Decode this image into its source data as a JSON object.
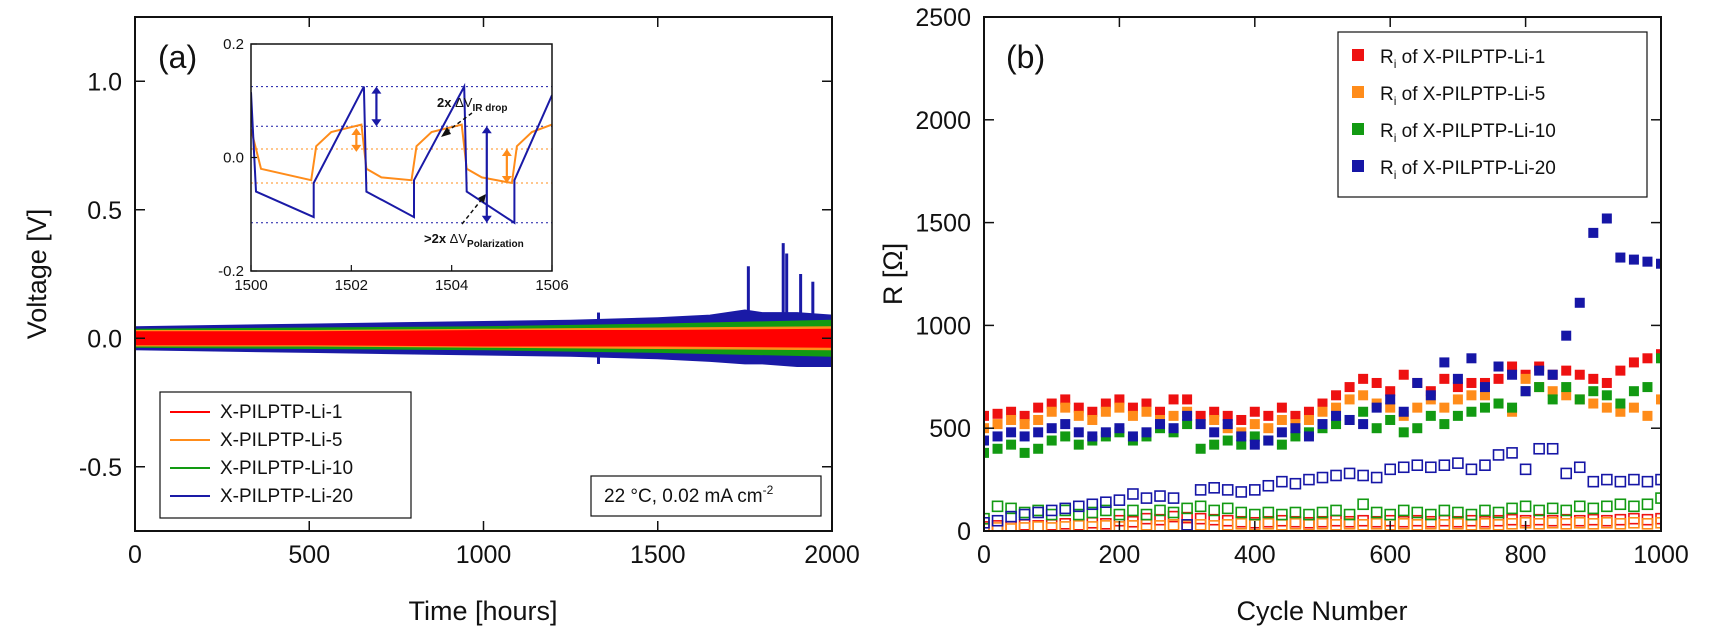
{
  "chart_data": [
    {
      "id": "a",
      "type": "line",
      "panel_label": "(a)",
      "xlabel": "Time [hours]",
      "ylabel": "Voltage [V]",
      "xlim": [
        0,
        2000
      ],
      "ylim": [
        -0.75,
        1.25
      ],
      "xticks": [
        "0",
        "500",
        "1000",
        "1500",
        "2000"
      ],
      "xtick_values": [
        0,
        500,
        1000,
        1500,
        2000
      ],
      "yticks": [
        "-0.5",
        "0.0",
        "0.5",
        "1.0"
      ],
      "ytick_values": [
        -0.5,
        0.0,
        0.5,
        1.0
      ],
      "annotation": "22 °C, 0.02 mA cm",
      "annotation_sup": "-2",
      "legend_position": "bottom-left",
      "series": [
        {
          "name": "X-PILPTP-Li-1",
          "color": "#ff0000",
          "x": [
            0,
            500,
            1000,
            1500,
            2000
          ],
          "upper": [
            0.025,
            0.025,
            0.03,
            0.03,
            0.035
          ],
          "lower": [
            -0.025,
            -0.025,
            -0.03,
            -0.03,
            -0.035
          ]
        },
        {
          "name": "X-PILPTP-Li-5",
          "color": "#ff8c1a",
          "x": [
            0,
            500,
            1000,
            1500,
            2000
          ],
          "upper": [
            0.03,
            0.03,
            0.035,
            0.04,
            0.045
          ],
          "lower": [
            -0.03,
            -0.03,
            -0.035,
            -0.04,
            -0.045
          ]
        },
        {
          "name": "X-PILPTP-Li-10",
          "color": "#129a12",
          "x": [
            0,
            500,
            1000,
            1500,
            2000
          ],
          "upper": [
            0.035,
            0.04,
            0.045,
            0.055,
            0.07
          ],
          "lower": [
            -0.035,
            -0.04,
            -0.045,
            -0.055,
            -0.07
          ]
        },
        {
          "name": "X-PILPTP-Li-20",
          "color": "#1a1aa6",
          "x": [
            0,
            250,
            500,
            750,
            1000,
            1250,
            1500,
            1650,
            1750,
            1800,
            1900,
            2000
          ],
          "upper": [
            0.045,
            0.05,
            0.055,
            0.06,
            0.065,
            0.07,
            0.08,
            0.09,
            0.11,
            0.1,
            0.1,
            0.09
          ],
          "lower": [
            -0.045,
            -0.05,
            -0.055,
            -0.06,
            -0.065,
            -0.07,
            -0.08,
            -0.09,
            -0.1,
            -0.1,
            -0.11,
            -0.11
          ],
          "spikes": [
            [
              1330,
              0.1
            ],
            [
              1330,
              -0.1
            ],
            [
              1760,
              0.28
            ],
            [
              1860,
              0.37
            ],
            [
              1870,
              0.33
            ],
            [
              1910,
              0.25
            ],
            [
              1945,
              0.22
            ]
          ]
        }
      ],
      "inset": {
        "xlim": [
          1500,
          1506
        ],
        "ylim": [
          -0.2,
          0.2
        ],
        "xticks": [
          "1500",
          "1502",
          "1504",
          "1506"
        ],
        "xtick_values": [
          1500,
          1502,
          1504,
          1506
        ],
        "yticks": [
          "-0.2",
          "0.0",
          "0.2"
        ],
        "ytick_values": [
          -0.2,
          0.0,
          0.2
        ],
        "ref_lines_blue": [
          0.125,
          0.055,
          -0.115
        ],
        "ref_lines_orange": [
          0.015,
          -0.045
        ],
        "label_ir_prefix": "2x ",
        "label_ir_delta": "ΔV",
        "label_ir_sub": "IR drop",
        "label_pol_prefix": ">2x  ",
        "label_pol_delta": "ΔV",
        "label_pol_sub": "Polarization",
        "blue_curve": {
          "x": [
            1500,
            1500.1,
            1501.25,
            1501.25,
            1502.25,
            1502.3,
            1503.25,
            1503.25,
            1504.25,
            1504.3,
            1505.25,
            1505.25,
            1506
          ],
          "y": [
            0.115,
            -0.06,
            -0.105,
            -0.045,
            0.125,
            -0.06,
            -0.105,
            -0.04,
            0.125,
            -0.06,
            -0.115,
            -0.04,
            0.11
          ]
        },
        "orange_curve": {
          "x": [
            1500,
            1500.2,
            1501.2,
            1501.3,
            1501.6,
            1502.2,
            1502.3,
            1502.6,
            1503.2,
            1503.3,
            1503.6,
            1504.2,
            1504.3,
            1504.6,
            1505.2,
            1505.3,
            1505.6,
            1506
          ],
          "y": [
            0.05,
            -0.02,
            -0.04,
            0.02,
            0.045,
            0.058,
            -0.02,
            -0.035,
            -0.04,
            0.02,
            0.045,
            0.058,
            -0.02,
            -0.035,
            -0.045,
            0.02,
            0.045,
            0.058
          ]
        }
      }
    },
    {
      "id": "b",
      "type": "scatter",
      "panel_label": "(b)",
      "xlabel": "Cycle Number",
      "ylabel": "R [Ω]",
      "xlim": [
        0,
        1000
      ],
      "ylim": [
        0,
        2500
      ],
      "xticks": [
        "0",
        "200",
        "400",
        "600",
        "800",
        "1000"
      ],
      "xtick_values": [
        0,
        200,
        400,
        600,
        800,
        1000
      ],
      "yticks": [
        "0",
        "500",
        "1000",
        "1500",
        "2000",
        "2500"
      ],
      "ytick_values": [
        0,
        500,
        1000,
        1500,
        2000,
        2500
      ],
      "legend_position": "top-right",
      "x": [
        0,
        20,
        40,
        60,
        80,
        100,
        120,
        140,
        160,
        180,
        200,
        220,
        240,
        260,
        280,
        300,
        320,
        340,
        360,
        380,
        400,
        420,
        440,
        460,
        480,
        500,
        520,
        540,
        560,
        580,
        600,
        620,
        640,
        660,
        680,
        700,
        720,
        740,
        760,
        780,
        800,
        820,
        840,
        860,
        880,
        900,
        920,
        940,
        960,
        980,
        1000
      ],
      "series": [
        {
          "name_prefix": "R",
          "name_sub": "i",
          "name_rest": " of X-PILPTP-Li-1",
          "color": "#ee1111",
          "values": [
            560,
            570,
            580,
            560,
            600,
            620,
            640,
            600,
            580,
            620,
            640,
            600,
            620,
            580,
            640,
            640,
            560,
            580,
            560,
            540,
            580,
            560,
            600,
            560,
            580,
            620,
            660,
            700,
            740,
            720,
            680,
            760,
            720,
            680,
            740,
            700,
            720,
            720,
            740,
            800,
            760,
            800,
            760,
            780,
            760,
            740,
            720,
            780,
            820,
            840,
            860
          ],
          "open": [
            20,
            25,
            20,
            30,
            25,
            30,
            35,
            30,
            40,
            35,
            50,
            45,
            60,
            55,
            70,
            65,
            60,
            55,
            50,
            45,
            40,
            45,
            50,
            45,
            40,
            45,
            50,
            45,
            50,
            45,
            50,
            45,
            50,
            45,
            50,
            45,
            50,
            45,
            50,
            55,
            50,
            55,
            50,
            55,
            50,
            55,
            50,
            55,
            60,
            55,
            60
          ]
        },
        {
          "name_prefix": "R",
          "name_sub": "i",
          "name_rest": " of X-PILPTP-Li-5",
          "color": "#ff8c1a",
          "values": [
            500,
            520,
            540,
            520,
            540,
            580,
            600,
            560,
            540,
            580,
            600,
            560,
            580,
            540,
            560,
            580,
            520,
            540,
            500,
            480,
            520,
            500,
            540,
            520,
            540,
            580,
            600,
            640,
            660,
            620,
            600,
            560,
            600,
            640,
            600,
            640,
            660,
            660,
            620,
            580,
            740,
            700,
            680,
            660,
            640,
            620,
            600,
            580,
            600,
            560,
            640
          ],
          "open": [
            10,
            15,
            10,
            15,
            20,
            15,
            20,
            25,
            20,
            25,
            20,
            25,
            30,
            25,
            30,
            25,
            30,
            25,
            30,
            35,
            30,
            35,
            30,
            35,
            30,
            35,
            30,
            35,
            30,
            35,
            30,
            35,
            30,
            35,
            30,
            35,
            30,
            35,
            30,
            35,
            40,
            35,
            40,
            35,
            40,
            35,
            40,
            35,
            40,
            35,
            40
          ]
        },
        {
          "name_prefix": "R",
          "name_sub": "i",
          "name_rest": " of X-PILPTP-Li-10",
          "color": "#129a12",
          "values": [
            380,
            400,
            420,
            380,
            400,
            440,
            460,
            420,
            440,
            460,
            480,
            440,
            460,
            500,
            480,
            520,
            400,
            420,
            440,
            420,
            460,
            440,
            420,
            460,
            480,
            500,
            520,
            540,
            580,
            500,
            540,
            480,
            500,
            560,
            520,
            560,
            580,
            600,
            620,
            600,
            680,
            700,
            640,
            700,
            640,
            680,
            660,
            620,
            680,
            700,
            840
          ],
          "open": [
            60,
            120,
            110,
            90,
            100,
            80,
            100,
            80,
            90,
            100,
            80,
            100,
            80,
            100,
            90,
            110,
            120,
            100,
            110,
            90,
            80,
            90,
            80,
            90,
            80,
            90,
            100,
            80,
            130,
            90,
            80,
            100,
            90,
            80,
            100,
            90,
            80,
            100,
            90,
            110,
            120,
            100,
            110,
            100,
            120,
            110,
            120,
            130,
            120,
            130,
            160
          ]
        },
        {
          "name_prefix": "R",
          "name_sub": "i",
          "name_rest": " of X-PILPTP-Li-20",
          "color": "#1616a6",
          "values": [
            440,
            460,
            480,
            460,
            480,
            500,
            520,
            480,
            460,
            480,
            500,
            460,
            480,
            520,
            500,
            560,
            520,
            480,
            520,
            460,
            420,
            440,
            480,
            500,
            460,
            520,
            560,
            540,
            520,
            600,
            640,
            580,
            720,
            660,
            820,
            740,
            840,
            700,
            800,
            760,
            680,
            780,
            760,
            950,
            1110,
            1450,
            1520,
            1330,
            1320,
            1310,
            1300
          ],
          "open": [
            40,
            50,
            70,
            80,
            90,
            100,
            110,
            120,
            130,
            140,
            150,
            180,
            160,
            170,
            160,
            30,
            200,
            210,
            200,
            190,
            200,
            220,
            240,
            230,
            250,
            260,
            270,
            280,
            270,
            260,
            300,
            310,
            320,
            310,
            320,
            330,
            300,
            320,
            370,
            380,
            300,
            400,
            400,
            280,
            310,
            240,
            250,
            240,
            250,
            240,
            250
          ]
        }
      ]
    }
  ]
}
